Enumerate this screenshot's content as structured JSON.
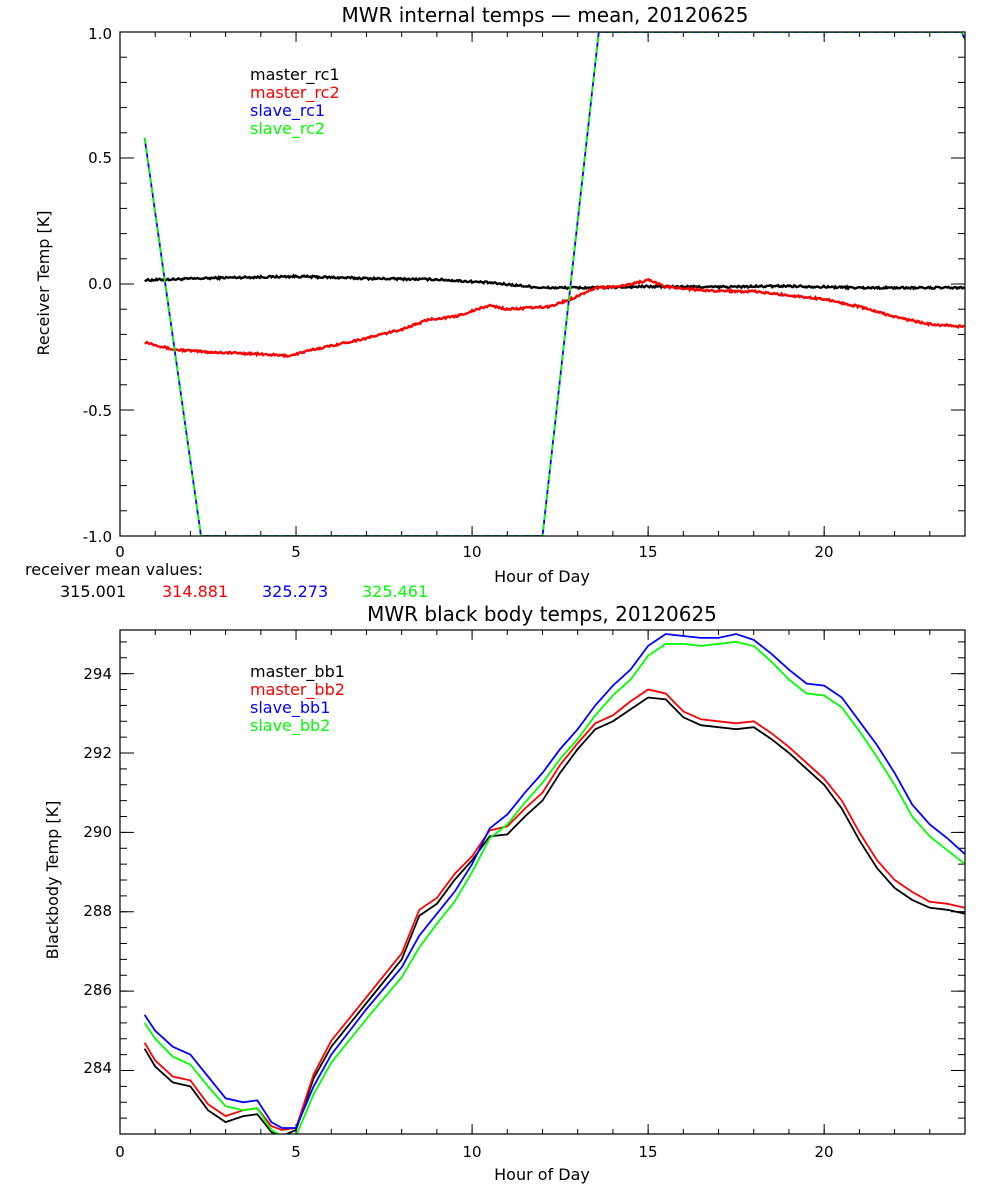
{
  "colors": {
    "black": "#000000",
    "red": "#ff0000",
    "blue": "#0000ff",
    "green": "#00ff00"
  },
  "mean_values": {
    "label": "receiver mean values:",
    "values": [
      "315.001",
      "314.881",
      "325.273",
      "325.461"
    ]
  },
  "chart_data": [
    {
      "type": "line",
      "title": "MWR internal temps — mean, 20120625",
      "xlabel": "Hour of Day",
      "ylabel": "Receiver Temp [K]",
      "xlim": [
        0,
        24
      ],
      "ylim": [
        -1.0,
        1.0
      ],
      "xticks": [
        0,
        5,
        10,
        15,
        20
      ],
      "xtick_labels": [
        "0",
        "5",
        "10",
        "15",
        "20"
      ],
      "yticks": [
        -1.0,
        -0.5,
        0.0,
        0.5,
        1.0
      ],
      "ytick_labels": [
        "-1.0",
        "-0.5",
        "0.0",
        "0.5",
        "1.0"
      ],
      "grid": false,
      "legend_position": "top-left",
      "series": [
        {
          "name": "master_rc1",
          "color": "#000000",
          "noise": 0.004,
          "x": [
            0.7,
            3,
            5,
            7,
            9,
            10.5,
            12,
            13.5,
            15,
            17,
            19,
            21,
            24
          ],
          "y": [
            0.015,
            0.025,
            0.03,
            0.022,
            0.018,
            0.005,
            -0.015,
            -0.015,
            -0.01,
            -0.012,
            -0.008,
            -0.015,
            -0.015
          ]
        },
        {
          "name": "master_rc2",
          "color": "#ff0000",
          "noise": 0.004,
          "x": [
            0.7,
            1.5,
            2.5,
            3.5,
            4.8,
            5.5,
            7,
            8,
            8.8,
            9.5,
            10.5,
            11,
            12.2,
            12.8,
            13.5,
            14.2,
            15,
            15.5,
            16.5,
            18,
            19,
            20,
            21,
            22,
            23,
            24
          ],
          "y": [
            -0.23,
            -0.26,
            -0.27,
            -0.275,
            -0.285,
            -0.26,
            -0.215,
            -0.18,
            -0.14,
            -0.13,
            -0.085,
            -0.1,
            -0.09,
            -0.06,
            -0.015,
            -0.01,
            0.015,
            -0.01,
            -0.025,
            -0.03,
            -0.045,
            -0.06,
            -0.09,
            -0.13,
            -0.16,
            -0.17
          ]
        },
        {
          "name": "slave_rc1",
          "color": "#0000ff",
          "noise": 0,
          "x": [
            0.7,
            2.3,
            12.0,
            13.6,
            23.9,
            24.0
          ],
          "y": [
            0.58,
            -1.0,
            -1.0,
            1.0,
            1.0,
            0.97
          ]
        },
        {
          "name": "slave_rc2",
          "color": "#00ff00",
          "noise": 0,
          "x": [
            0.7,
            2.3,
            12.0,
            13.6,
            23.9,
            24.0
          ],
          "y": [
            0.58,
            -1.0,
            -1.0,
            1.0,
            1.0,
            0.97
          ]
        }
      ]
    },
    {
      "type": "line",
      "title": "MWR black body temps, 20120625",
      "xlabel": "Hour of Day",
      "ylabel": "Blackbody Temp [K]",
      "xlim": [
        0,
        24
      ],
      "ylim": [
        282.4,
        295.1
      ],
      "xticks": [
        0,
        5,
        10,
        15,
        20
      ],
      "xtick_labels": [
        "0",
        "5",
        "10",
        "15",
        "20"
      ],
      "yticks": [
        284,
        286,
        288,
        290,
        292,
        294
      ],
      "ytick_labels": [
        "284",
        "286",
        "288",
        "290",
        "292",
        "294"
      ],
      "grid": false,
      "legend_position": "top-left",
      "series": [
        {
          "name": "master_bb1",
          "color": "#000000",
          "noise": 0,
          "x": [
            0.7,
            1.0,
            1.5,
            2.0,
            2.5,
            3.0,
            3.5,
            3.9,
            4.3,
            4.6,
            5.0,
            5.5,
            6.0,
            7.0,
            8.0,
            8.5,
            9.0,
            9.5,
            10.0,
            10.5,
            11.0,
            11.5,
            12.0,
            12.5,
            13.0,
            13.5,
            14.0,
            14.5,
            15.0,
            15.5,
            16.0,
            16.5,
            17.0,
            17.5,
            18.0,
            18.5,
            19.0,
            19.5,
            20.0,
            20.5,
            21.0,
            21.5,
            22.0,
            22.5,
            23.0,
            23.5,
            24.0
          ],
          "y": [
            284.55,
            284.1,
            283.7,
            283.6,
            283.0,
            282.7,
            282.85,
            282.9,
            282.45,
            282.35,
            282.5,
            283.8,
            284.6,
            285.7,
            286.8,
            287.9,
            288.2,
            288.8,
            289.3,
            289.9,
            289.95,
            290.4,
            290.8,
            291.5,
            292.1,
            292.6,
            292.8,
            293.1,
            293.4,
            293.35,
            292.9,
            292.7,
            292.65,
            292.6,
            292.65,
            292.35,
            292.0,
            291.6,
            291.2,
            290.6,
            289.8,
            289.1,
            288.6,
            288.3,
            288.1,
            288.05,
            287.95
          ]
        },
        {
          "name": "master_bb2",
          "color": "#ff0000",
          "noise": 0,
          "x": [
            0.7,
            1.0,
            1.5,
            2.0,
            2.5,
            3.0,
            3.5,
            3.9,
            4.3,
            4.6,
            5.0,
            5.5,
            6.0,
            7.0,
            8.0,
            8.5,
            9.0,
            9.5,
            10.0,
            10.5,
            11.0,
            11.5,
            12.0,
            12.5,
            13.0,
            13.5,
            14.0,
            14.5,
            15.0,
            15.5,
            16.0,
            16.5,
            17.0,
            17.5,
            18.0,
            18.5,
            19.0,
            19.5,
            20.0,
            20.5,
            21.0,
            21.5,
            22.0,
            22.5,
            23.0,
            23.5,
            24.0
          ],
          "y": [
            284.7,
            284.25,
            283.85,
            283.75,
            283.15,
            282.85,
            283.0,
            283.05,
            282.6,
            282.5,
            282.55,
            283.9,
            284.75,
            285.85,
            286.95,
            288.05,
            288.35,
            288.95,
            289.4,
            290.05,
            290.15,
            290.6,
            291.0,
            291.7,
            292.25,
            292.75,
            292.95,
            293.3,
            293.6,
            293.5,
            293.05,
            292.85,
            292.8,
            292.75,
            292.8,
            292.5,
            292.15,
            291.75,
            291.35,
            290.8,
            290.0,
            289.3,
            288.8,
            288.5,
            288.25,
            288.2,
            288.1
          ]
        },
        {
          "name": "slave_bb1",
          "color": "#0000ff",
          "noise": 0,
          "x": [
            0.7,
            1.0,
            1.5,
            2.0,
            2.5,
            3.0,
            3.5,
            3.9,
            4.3,
            4.6,
            5.0,
            5.5,
            6.0,
            7.0,
            8.0,
            8.5,
            9.0,
            9.5,
            10.0,
            10.5,
            11.0,
            11.5,
            12.0,
            12.5,
            13.0,
            13.5,
            14.0,
            14.5,
            15.0,
            15.5,
            16.0,
            16.5,
            17.0,
            17.5,
            18.0,
            18.5,
            19.0,
            19.5,
            20.0,
            20.5,
            21.0,
            21.5,
            22.0,
            22.5,
            23.0,
            23.5,
            24.0
          ],
          "y": [
            285.4,
            285.0,
            284.6,
            284.4,
            283.85,
            283.3,
            283.2,
            283.25,
            282.7,
            282.55,
            282.55,
            283.6,
            284.4,
            285.55,
            286.6,
            287.4,
            287.95,
            288.5,
            289.2,
            290.1,
            290.45,
            291.0,
            291.5,
            292.1,
            292.6,
            293.2,
            293.7,
            294.1,
            294.7,
            295.0,
            294.95,
            294.9,
            294.9,
            295.0,
            294.85,
            294.5,
            294.1,
            293.75,
            293.7,
            293.4,
            292.8,
            292.2,
            291.5,
            290.7,
            290.2,
            289.85,
            289.45
          ]
        },
        {
          "name": "slave_bb2",
          "color": "#00ff00",
          "noise": 0,
          "x": [
            0.7,
            1.0,
            1.5,
            2.0,
            2.5,
            3.0,
            3.5,
            3.9,
            4.3,
            4.6,
            5.0,
            5.5,
            6.0,
            7.0,
            8.0,
            8.5,
            9.0,
            9.5,
            10.0,
            10.5,
            11.0,
            11.5,
            12.0,
            12.5,
            13.0,
            13.5,
            14.0,
            14.5,
            15.0,
            15.5,
            16.0,
            16.5,
            17.0,
            17.5,
            18.0,
            18.5,
            19.0,
            19.5,
            20.0,
            20.5,
            21.0,
            21.5,
            22.0,
            22.5,
            23.0,
            23.5,
            24.0
          ],
          "y": [
            285.2,
            284.8,
            284.35,
            284.15,
            283.6,
            283.1,
            283.0,
            283.05,
            282.5,
            282.35,
            282.35,
            283.4,
            284.2,
            285.3,
            286.35,
            287.1,
            287.7,
            288.25,
            289.0,
            289.85,
            290.2,
            290.75,
            291.25,
            291.85,
            292.35,
            292.95,
            293.45,
            293.85,
            294.45,
            294.75,
            294.75,
            294.7,
            294.75,
            294.8,
            294.7,
            294.3,
            293.85,
            293.5,
            293.45,
            293.15,
            292.55,
            291.9,
            291.2,
            290.4,
            289.9,
            289.55,
            289.2
          ]
        }
      ]
    }
  ]
}
